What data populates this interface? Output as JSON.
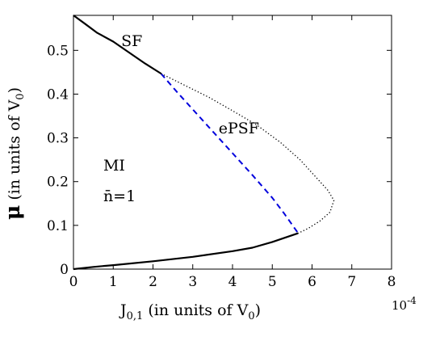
{
  "chart_data": {
    "type": "line",
    "xlabel_main": "J",
    "xlabel_sub": "0,1",
    "xlabel_rest": " (in units of V",
    "xlabel_unit_sub": "0",
    "xlabel_close": ")",
    "x_multiplier": "10",
    "x_multiplier_exp": "-4",
    "ylabel_main": "μ",
    "ylabel_rest": " (in units of V",
    "ylabel_unit_sub": "0",
    "ylabel_close": ")",
    "xlim": [
      0,
      8
    ],
    "ylim": [
      0,
      0.58
    ],
    "x_ticks": [
      0,
      1,
      2,
      3,
      4,
      5,
      6,
      7,
      8
    ],
    "x_tick_labels": [
      "0",
      "1",
      "2",
      "3",
      "4",
      "5",
      "6",
      "7",
      "8"
    ],
    "y_ticks": [
      0,
      0.1,
      0.2,
      0.3,
      0.4,
      0.5
    ],
    "y_tick_labels": [
      "0",
      "0.1",
      "0.2",
      "0.3",
      "0.4",
      "0.5"
    ],
    "grid": false,
    "legend": false,
    "series": [
      {
        "style": "solid",
        "color": "#000000",
        "x": [
          0,
          0.3,
          0.6,
          1.0,
          1.4,
          1.8,
          2.2
        ],
        "y": [
          0.58,
          0.56,
          0.54,
          0.52,
          0.495,
          0.47,
          0.447
        ]
      },
      {
        "style": "solid",
        "color": "#000000",
        "x": [
          0,
          0.5,
          1.0,
          2.0,
          3.0,
          4.0,
          4.5,
          5.0,
          5.65
        ],
        "y": [
          0.0,
          0.005,
          0.009,
          0.018,
          0.028,
          0.041,
          0.049,
          0.062,
          0.082
        ]
      },
      {
        "style": "dashed",
        "color": "#0000dd",
        "x": [
          2.2,
          2.6,
          3.0,
          3.5,
          4.0,
          4.5,
          5.0,
          5.3,
          5.65
        ],
        "y": [
          0.447,
          0.405,
          0.365,
          0.315,
          0.265,
          0.215,
          0.163,
          0.127,
          0.082
        ]
      },
      {
        "style": "dotted",
        "color": "#000000",
        "x": [
          2.2,
          2.8,
          3.4,
          4.0,
          4.6,
          5.2,
          5.7,
          6.1,
          6.4,
          6.55,
          6.45,
          6.2,
          5.9,
          5.65
        ],
        "y": [
          0.447,
          0.42,
          0.393,
          0.362,
          0.33,
          0.29,
          0.25,
          0.21,
          0.18,
          0.157,
          0.13,
          0.11,
          0.093,
          0.082
        ]
      }
    ],
    "annotations": [
      {
        "text": "SF",
        "x": 1.2,
        "y": 0.51
      },
      {
        "text": "ePSF",
        "x": 3.65,
        "y": 0.31
      },
      {
        "text": "MI",
        "x": 0.75,
        "y": 0.225
      },
      {
        "text": "n̄=1",
        "x": 0.75,
        "y": 0.155
      }
    ]
  }
}
